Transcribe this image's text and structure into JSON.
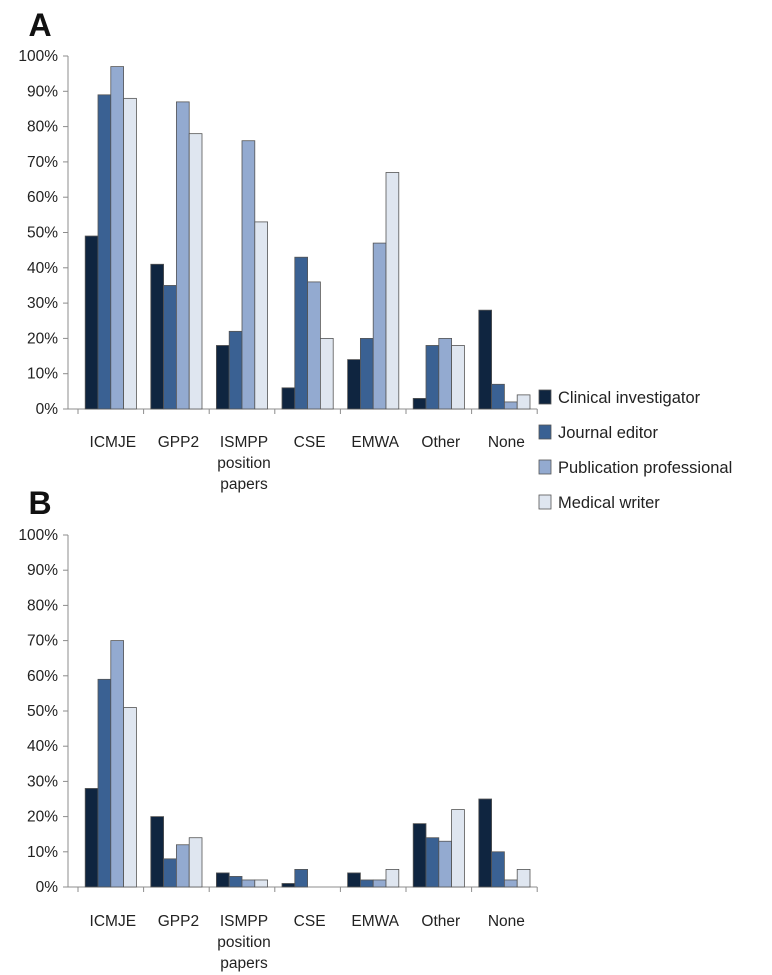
{
  "legend": {
    "items": [
      {
        "name": "Clinical investigator",
        "color": "#0f2540"
      },
      {
        "name": "Journal editor",
        "color": "#3a6193"
      },
      {
        "name": "Publication professional",
        "color": "#93aad0"
      },
      {
        "name": "Medical writer",
        "color": "#dfe6f0"
      }
    ]
  },
  "chart_data": [
    {
      "type": "bar",
      "panel_label": "A",
      "categories": [
        [
          "ICMJE"
        ],
        [
          "GPP2"
        ],
        [
          "ISMPP",
          "position",
          "papers"
        ],
        [
          "CSE"
        ],
        [
          "EMWA"
        ],
        [
          "Other"
        ],
        [
          "None"
        ]
      ],
      "y_ticks": [
        "0%",
        "10%",
        "20%",
        "30%",
        "40%",
        "50%",
        "60%",
        "70%",
        "80%",
        "90%",
        "100%"
      ],
      "ylim": [
        0,
        100
      ],
      "grid": false,
      "legend_position": "right",
      "series": [
        {
          "name": "Clinical investigator",
          "values": [
            49,
            41,
            18,
            6,
            14,
            3,
            28
          ]
        },
        {
          "name": "Journal editor",
          "values": [
            89,
            35,
            22,
            43,
            20,
            18,
            7
          ]
        },
        {
          "name": "Publication professional",
          "values": [
            97,
            87,
            76,
            36,
            47,
            20,
            2
          ]
        },
        {
          "name": "Medical writer",
          "values": [
            88,
            78,
            53,
            20,
            67,
            18,
            4
          ]
        }
      ]
    },
    {
      "type": "bar",
      "panel_label": "B",
      "categories": [
        [
          "ICMJE"
        ],
        [
          "GPP2"
        ],
        [
          "ISMPP",
          "position",
          "papers"
        ],
        [
          "CSE"
        ],
        [
          "EMWA"
        ],
        [
          "Other"
        ],
        [
          "None"
        ]
      ],
      "y_ticks": [
        "0%",
        "10%",
        "20%",
        "30%",
        "40%",
        "50%",
        "60%",
        "70%",
        "80%",
        "90%",
        "100%"
      ],
      "ylim": [
        0,
        100
      ],
      "grid": false,
      "series": [
        {
          "name": "Clinical investigator",
          "values": [
            28,
            20,
            4,
            1,
            4,
            18,
            25
          ]
        },
        {
          "name": "Journal editor",
          "values": [
            59,
            8,
            3,
            5,
            2,
            14,
            10
          ]
        },
        {
          "name": "Publication professional",
          "values": [
            70,
            12,
            2,
            0,
            2,
            13,
            2
          ]
        },
        {
          "name": "Medical writer",
          "values": [
            51,
            14,
            2,
            0,
            5,
            22,
            5
          ]
        }
      ]
    }
  ]
}
